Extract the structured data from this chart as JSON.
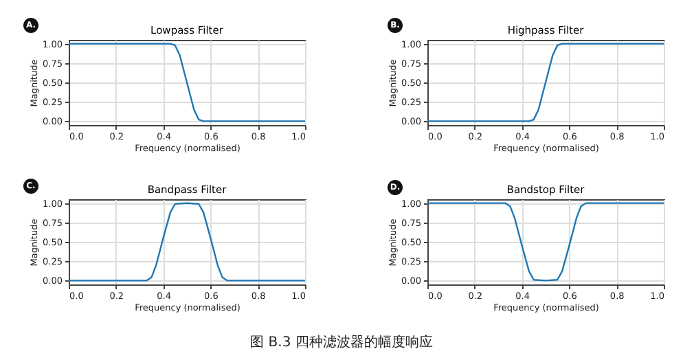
{
  "chart_data": [
    {
      "type": "line",
      "title": "Lowpass Filter",
      "xlabel": "Frequency (normalised)",
      "ylabel": "Magnitude",
      "annotations": [
        "A."
      ],
      "grid": true,
      "x": [
        0,
        0.1,
        0.2,
        0.3,
        0.4,
        0.43,
        0.45,
        0.47,
        0.5,
        0.53,
        0.55,
        0.57,
        0.6,
        0.7,
        0.8,
        0.9,
        1.0
      ],
      "series": [
        {
          "color": "#1f77b4",
          "values": [
            1,
            1,
            1,
            1,
            1,
            1,
            0.98,
            0.85,
            0.5,
            0.15,
            0.02,
            0,
            0,
            0,
            0,
            0,
            0
          ]
        }
      ],
      "xlim": [
        0,
        1
      ],
      "xticks": [
        {
          "value": 0,
          "label": "0.0"
        },
        {
          "value": 0.2,
          "label": "0.2"
        },
        {
          "value": 0.4,
          "label": "0.4"
        },
        {
          "value": 0.6,
          "label": "0.6"
        },
        {
          "value": 0.8,
          "label": "0.8"
        },
        {
          "value": 1,
          "label": "1.0"
        }
      ],
      "ylim": [
        -0.05,
        1.05
      ],
      "yticks": [
        {
          "value": 0,
          "label": "0.00"
        },
        {
          "value": 0.25,
          "label": "0.25"
        },
        {
          "value": 0.5,
          "label": "0.50"
        },
        {
          "value": 0.75,
          "label": "0.75"
        },
        {
          "value": 1,
          "label": "1.00"
        }
      ]
    },
    {
      "type": "line",
      "title": "Highpass Filter",
      "xlabel": "Frequency (normalised)",
      "ylabel": "Magnitude",
      "annotations": [
        "B."
      ],
      "grid": true,
      "x": [
        0,
        0.1,
        0.2,
        0.3,
        0.4,
        0.43,
        0.45,
        0.47,
        0.5,
        0.53,
        0.55,
        0.57,
        0.6,
        0.7,
        0.8,
        0.9,
        1.0
      ],
      "series": [
        {
          "color": "#1f77b4",
          "values": [
            0,
            0,
            0,
            0,
            0,
            0,
            0.02,
            0.15,
            0.5,
            0.85,
            0.98,
            1,
            1,
            1,
            1,
            1,
            1
          ]
        }
      ],
      "xlim": [
        0,
        1
      ],
      "xticks": [
        {
          "value": 0,
          "label": "0.0"
        },
        {
          "value": 0.2,
          "label": "0.2"
        },
        {
          "value": 0.4,
          "label": "0.4"
        },
        {
          "value": 0.6,
          "label": "0.6"
        },
        {
          "value": 0.8,
          "label": "0.8"
        },
        {
          "value": 1,
          "label": "1.0"
        }
      ],
      "ylim": [
        -0.05,
        1.05
      ],
      "yticks": [
        {
          "value": 0,
          "label": "0.00"
        },
        {
          "value": 0.25,
          "label": "0.25"
        },
        {
          "value": 0.5,
          "label": "0.50"
        },
        {
          "value": 0.75,
          "label": "0.75"
        },
        {
          "value": 1,
          "label": "1.00"
        }
      ]
    },
    {
      "type": "line",
      "title": "Bandpass Filter",
      "xlabel": "Frequency (normalised)",
      "ylabel": "Magnitude",
      "annotations": [
        "C."
      ],
      "grid": true,
      "x": [
        0,
        0.1,
        0.2,
        0.3,
        0.33,
        0.35,
        0.37,
        0.4,
        0.43,
        0.45,
        0.5,
        0.55,
        0.57,
        0.6,
        0.63,
        0.65,
        0.67,
        0.7,
        0.8,
        0.9,
        1.0
      ],
      "series": [
        {
          "color": "#1f77b4",
          "values": [
            0,
            0,
            0,
            0,
            0,
            0.04,
            0.2,
            0.55,
            0.88,
            0.99,
            1,
            0.99,
            0.88,
            0.55,
            0.2,
            0.04,
            0,
            0,
            0,
            0,
            0
          ]
        }
      ],
      "xlim": [
        0,
        1
      ],
      "xticks": [
        {
          "value": 0,
          "label": "0.0"
        },
        {
          "value": 0.2,
          "label": "0.2"
        },
        {
          "value": 0.4,
          "label": "0.4"
        },
        {
          "value": 0.6,
          "label": "0.6"
        },
        {
          "value": 0.8,
          "label": "0.8"
        },
        {
          "value": 1,
          "label": "1.0"
        }
      ],
      "ylim": [
        -0.05,
        1.05
      ],
      "yticks": [
        {
          "value": 0,
          "label": "0.00"
        },
        {
          "value": 0.25,
          "label": "0.25"
        },
        {
          "value": 0.5,
          "label": "0.50"
        },
        {
          "value": 0.75,
          "label": "0.75"
        },
        {
          "value": 1,
          "label": "1.00"
        }
      ]
    },
    {
      "type": "line",
      "title": "Bandstop Filter",
      "xlabel": "Frequency (normalised)",
      "ylabel": "Magnitude",
      "annotations": [
        "D.",
        "图 B.3 四种滤波器的幅度响应"
      ],
      "grid": true,
      "x": [
        0,
        0.1,
        0.2,
        0.3,
        0.33,
        0.35,
        0.37,
        0.4,
        0.43,
        0.45,
        0.5,
        0.55,
        0.57,
        0.6,
        0.63,
        0.65,
        0.67,
        0.7,
        0.8,
        0.9,
        1.0
      ],
      "series": [
        {
          "color": "#1f77b4",
          "values": [
            1,
            1,
            1,
            1,
            1,
            0.96,
            0.8,
            0.45,
            0.12,
            0.01,
            0,
            0.01,
            0.12,
            0.45,
            0.8,
            0.96,
            1,
            1,
            1,
            1,
            1
          ]
        }
      ],
      "xlim": [
        0,
        1
      ],
      "xticks": [
        {
          "value": 0,
          "label": "0.0"
        },
        {
          "value": 0.2,
          "label": "0.2"
        },
        {
          "value": 0.4,
          "label": "0.4"
        },
        {
          "value": 0.6,
          "label": "0.6"
        },
        {
          "value": 0.8,
          "label": "0.8"
        },
        {
          "value": 1,
          "label": "1.0"
        }
      ],
      "ylim": [
        -0.05,
        1.05
      ],
      "yticks": [
        {
          "value": 0,
          "label": "0.00"
        },
        {
          "value": 0.25,
          "label": "0.25"
        },
        {
          "value": 0.5,
          "label": "0.50"
        },
        {
          "value": 0.75,
          "label": "0.75"
        },
        {
          "value": 1,
          "label": "1.00"
        }
      ]
    }
  ]
}
